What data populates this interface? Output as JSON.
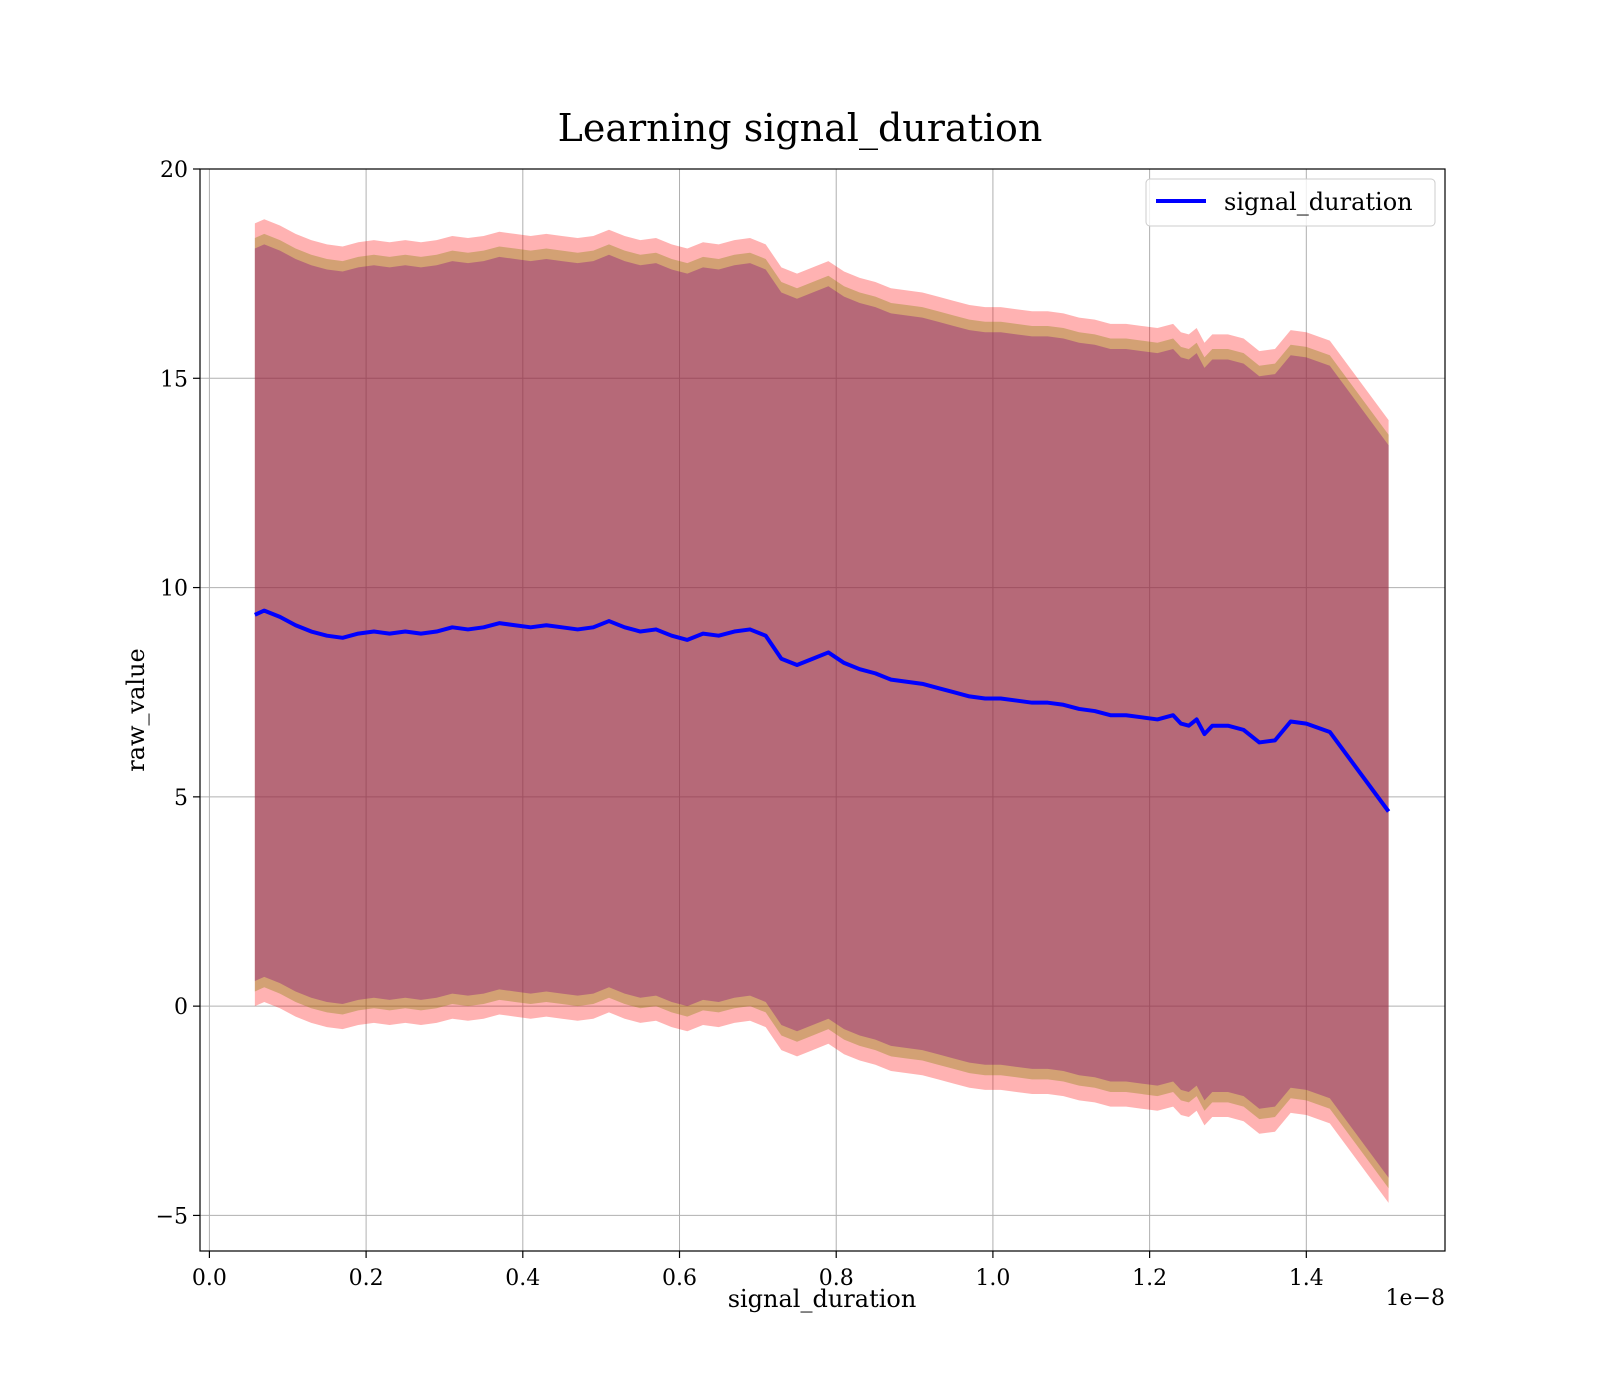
{
  "chart_data": {
    "type": "line",
    "title": "Learning signal_duration",
    "xlabel": "signal_duration",
    "ylabel": "raw_value",
    "x_offset_label": "1e−8",
    "xlim": [
      -0.012,
      1.577
    ],
    "ylim": [
      -5.85,
      20.0
    ],
    "grid": true,
    "legend": {
      "position": "top-right",
      "entries": [
        "signal_duration"
      ]
    },
    "x_ticks": [
      0.0,
      0.2,
      0.4,
      0.6,
      0.8,
      1.0,
      1.2,
      1.4
    ],
    "x_tick_labels": [
      "0.0",
      "0.2",
      "0.4",
      "0.6",
      "0.8",
      "1.0",
      "1.2",
      "1.4"
    ],
    "y_ticks": [
      -5,
      0,
      5,
      10,
      15,
      20
    ],
    "y_tick_labels": [
      "−5",
      "0",
      "5",
      "10",
      "15",
      "20"
    ],
    "series": [
      {
        "name": "signal_duration",
        "color": "#0000ff",
        "x": [
          0.058,
          0.07,
          0.09,
          0.11,
          0.13,
          0.15,
          0.17,
          0.19,
          0.21,
          0.23,
          0.25,
          0.27,
          0.29,
          0.31,
          0.33,
          0.35,
          0.37,
          0.39,
          0.41,
          0.43,
          0.45,
          0.47,
          0.49,
          0.51,
          0.53,
          0.55,
          0.57,
          0.59,
          0.61,
          0.63,
          0.65,
          0.67,
          0.69,
          0.71,
          0.73,
          0.75,
          0.77,
          0.79,
          0.81,
          0.83,
          0.85,
          0.87,
          0.89,
          0.91,
          0.93,
          0.95,
          0.97,
          0.99,
          1.01,
          1.03,
          1.05,
          1.07,
          1.09,
          1.11,
          1.13,
          1.15,
          1.17,
          1.19,
          1.21,
          1.23,
          1.24,
          1.25,
          1.26,
          1.27,
          1.28,
          1.3,
          1.32,
          1.34,
          1.36,
          1.38,
          1.4,
          1.43,
          1.505
        ],
        "y": [
          9.35,
          9.45,
          9.3,
          9.1,
          8.95,
          8.85,
          8.8,
          8.9,
          8.95,
          8.9,
          8.95,
          8.9,
          8.95,
          9.05,
          9.0,
          9.05,
          9.15,
          9.1,
          9.05,
          9.1,
          9.05,
          9.0,
          9.05,
          9.2,
          9.05,
          8.95,
          9.0,
          8.85,
          8.75,
          8.9,
          8.85,
          8.95,
          9.0,
          8.85,
          8.3,
          8.15,
          8.3,
          8.45,
          8.2,
          8.05,
          7.95,
          7.8,
          7.75,
          7.7,
          7.6,
          7.5,
          7.4,
          7.35,
          7.35,
          7.3,
          7.25,
          7.25,
          7.2,
          7.1,
          7.05,
          6.95,
          6.95,
          6.9,
          6.85,
          6.95,
          6.75,
          6.7,
          6.85,
          6.5,
          6.7,
          6.7,
          6.6,
          6.3,
          6.35,
          6.8,
          6.75,
          6.55,
          4.65
        ],
        "bands": [
          {
            "color": "#ff0000",
            "opacity": 0.3,
            "upper_offset": 9.35,
            "lower_offset": 9.35
          },
          {
            "color": "#808000",
            "opacity": 0.35,
            "upper_offset": 9.0,
            "lower_offset": 9.0
          },
          {
            "color": "#800080",
            "opacity": 0.35,
            "upper_offset": 8.75,
            "lower_offset": 8.75
          }
        ]
      }
    ]
  }
}
